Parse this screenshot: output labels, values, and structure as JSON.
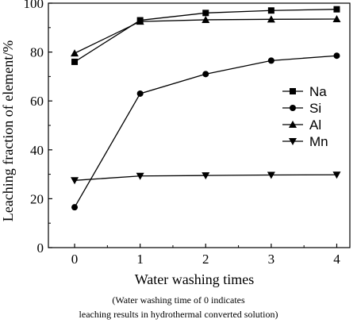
{
  "chart_data": {
    "type": "line",
    "title": "",
    "xlabel": "Water washing times",
    "ylabel": "Leaching fraction of element/%",
    "x": [
      0,
      1,
      2,
      3,
      4
    ],
    "xlim": [
      -0.4,
      4.2
    ],
    "ylim": [
      0,
      100
    ],
    "xticks": [
      0,
      1,
      2,
      3,
      4
    ],
    "yticks": [
      0,
      20,
      40,
      60,
      80,
      100
    ],
    "grid": false,
    "legend_position": "right-middle",
    "series": [
      {
        "name": "Na",
        "marker": "square",
        "values": [
          76,
          93,
          96,
          97,
          97.5
        ]
      },
      {
        "name": "Si",
        "marker": "circle",
        "values": [
          16.5,
          63,
          71,
          76.5,
          78.5
        ]
      },
      {
        "name": "Al",
        "marker": "triangle-up",
        "values": [
          79.5,
          92.5,
          93.2,
          93.4,
          93.5
        ]
      },
      {
        "name": "Mn",
        "marker": "triangle-down",
        "values": [
          27.5,
          29.3,
          29.5,
          29.7,
          29.8
        ]
      }
    ]
  },
  "caption": {
    "line1": "(Water  washing  time  of  0  indicates",
    "line2": "leaching results in hydrothermal converted solution)"
  }
}
